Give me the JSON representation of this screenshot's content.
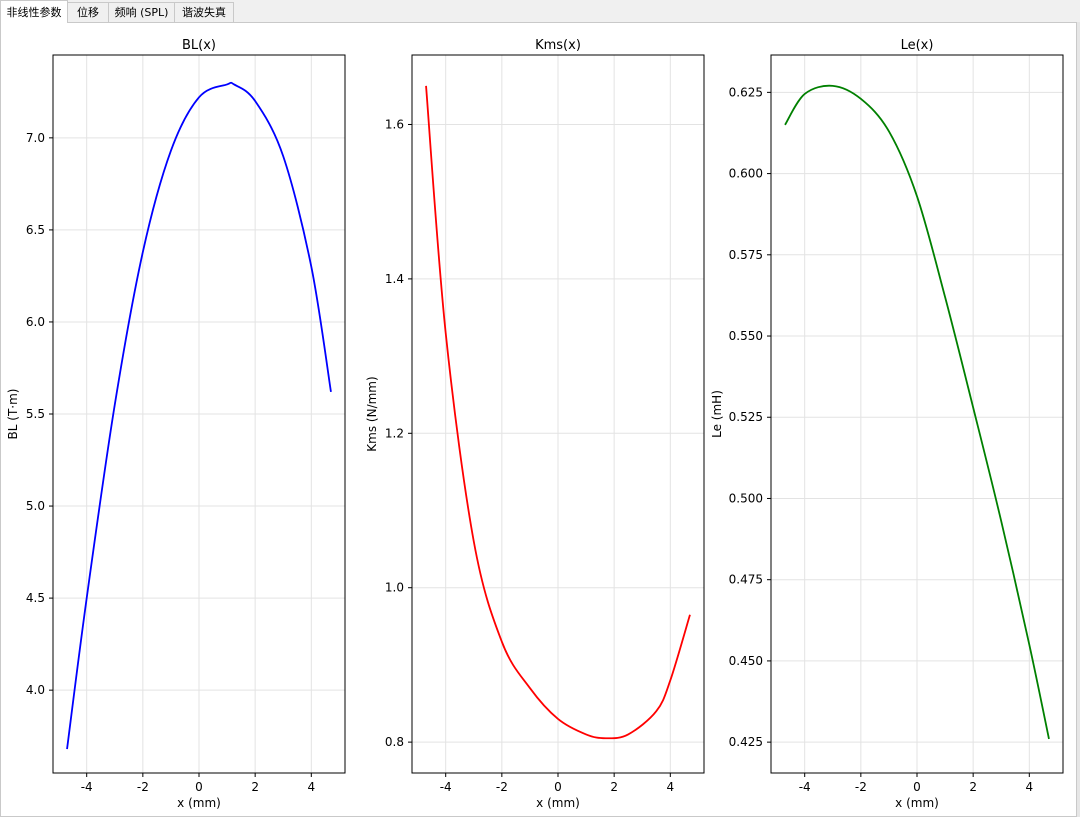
{
  "tabs": [
    {
      "label": "非线性参数",
      "active": true
    },
    {
      "label": "位移",
      "active": false
    },
    {
      "label": "频响 (SPL)",
      "active": false
    },
    {
      "label": "谐波失真",
      "active": false
    }
  ],
  "chart_data": [
    {
      "type": "line",
      "title": "BL(x)",
      "xlabel": "x (mm)",
      "ylabel": "BL (T·m)",
      "xlim": [
        -5.2,
        5.2
      ],
      "ylim": [
        3.55,
        7.45
      ],
      "xticks": [
        "-4",
        "-2",
        "0",
        "2",
        "4"
      ],
      "xtick_values": [
        -4,
        -2,
        0,
        2,
        4
      ],
      "yticks": [
        "4.0",
        "4.5",
        "5.0",
        "5.5",
        "6.0",
        "6.5",
        "7.0"
      ],
      "ytick_values": [
        4.0,
        4.5,
        5.0,
        5.5,
        6.0,
        6.5,
        7.0
      ],
      "grid": true,
      "color": "#0000ff",
      "series": [
        {
          "x": [
            -4.7,
            -4.0,
            -3.0,
            -2.0,
            -1.0,
            0.0,
            1.0,
            1.25,
            2.0,
            3.0,
            4.0,
            4.7
          ],
          "values": [
            3.68,
            4.5,
            5.55,
            6.38,
            6.93,
            7.22,
            7.29,
            7.29,
            7.2,
            6.9,
            6.3,
            5.62
          ]
        }
      ]
    },
    {
      "type": "line",
      "title": "Kms(x)",
      "xlabel": "x (mm)",
      "ylabel": "Kms (N/mm)",
      "xlim": [
        -5.2,
        5.2
      ],
      "ylim": [
        0.76,
        1.69
      ],
      "xticks": [
        "-4",
        "-2",
        "0",
        "2",
        "4"
      ],
      "xtick_values": [
        -4,
        -2,
        0,
        2,
        4
      ],
      "yticks": [
        "0.8",
        "1.0",
        "1.2",
        "1.4",
        "1.6"
      ],
      "ytick_values": [
        0.8,
        1.0,
        1.2,
        1.4,
        1.6
      ],
      "grid": true,
      "color": "#ff0000",
      "series": [
        {
          "x": [
            -4.7,
            -4.0,
            -3.0,
            -2.0,
            -1.0,
            0.0,
            1.0,
            1.7,
            2.5,
            3.5,
            4.0,
            4.7
          ],
          "values": [
            1.65,
            1.33,
            1.06,
            0.93,
            0.87,
            0.83,
            0.81,
            0.805,
            0.81,
            0.84,
            0.88,
            0.965
          ]
        }
      ]
    },
    {
      "type": "line",
      "title": "Le(x)",
      "xlabel": "x (mm)",
      "ylabel": "Le (mH)",
      "xlim": [
        -5.2,
        5.2
      ],
      "ylim": [
        0.4155,
        0.6365
      ],
      "xticks": [
        "-4",
        "-2",
        "0",
        "2",
        "4"
      ],
      "xtick_values": [
        -4,
        -2,
        0,
        2,
        4
      ],
      "yticks": [
        "0.425",
        "0.450",
        "0.475",
        "0.500",
        "0.525",
        "0.550",
        "0.575",
        "0.600",
        "0.625"
      ],
      "ytick_values": [
        0.425,
        0.45,
        0.475,
        0.5,
        0.525,
        0.55,
        0.575,
        0.6,
        0.625
      ],
      "grid": true,
      "color": "#008000",
      "series": [
        {
          "x": [
            -4.7,
            -4.0,
            -3.0,
            -2.0,
            -1.0,
            0.0,
            1.0,
            2.0,
            3.0,
            4.0,
            4.7
          ],
          "values": [
            0.615,
            0.6245,
            0.627,
            0.623,
            0.613,
            0.593,
            0.562,
            0.528,
            0.493,
            0.455,
            0.426
          ]
        }
      ]
    }
  ]
}
